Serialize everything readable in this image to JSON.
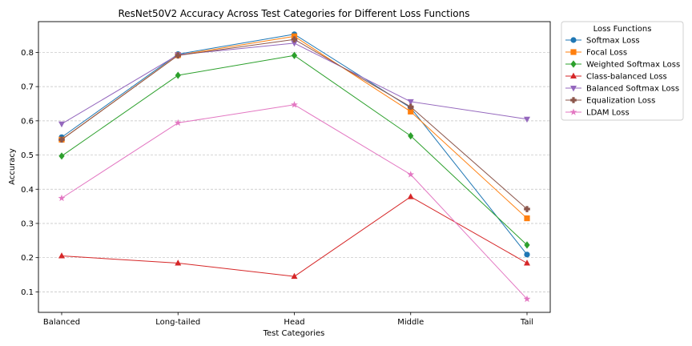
{
  "chart_data": {
    "type": "line",
    "title": "ResNet50V2 Accuracy Across Test Categories for Different Loss Functions",
    "xlabel": "Test Categories",
    "ylabel": "Accuracy",
    "categories": [
      "Balanced",
      "Long-tailed",
      "Head",
      "Middle",
      "Tail"
    ],
    "ylim": [
      0.04,
      0.89
    ],
    "yticks": [
      0.1,
      0.2,
      0.3,
      0.4,
      0.5,
      0.6,
      0.7,
      0.8
    ],
    "ytick_labels": [
      "0.1",
      "0.2",
      "0.3",
      "0.4",
      "0.5",
      "0.6",
      "0.7",
      "0.8"
    ],
    "grid": "horizontal-dashed",
    "legend": {
      "title": "Loss Functions",
      "placement": "outside-upper-right"
    },
    "series": [
      {
        "name": "Softmax Loss",
        "values": [
          0.552,
          0.795,
          0.853,
          0.638,
          0.209
        ],
        "color": "#1f77b4",
        "marker": "circle"
      },
      {
        "name": "Focal Loss",
        "values": [
          0.545,
          0.792,
          0.847,
          0.627,
          0.315
        ],
        "color": "#ff7f0e",
        "marker": "square"
      },
      {
        "name": "Weighted Softmax Loss",
        "values": [
          0.497,
          0.733,
          0.791,
          0.556,
          0.237
        ],
        "color": "#2ca02c",
        "marker": "diamond"
      },
      {
        "name": "Class-balanced Loss",
        "values": [
          0.205,
          0.184,
          0.145,
          0.378,
          0.184
        ],
        "color": "#d62728",
        "marker": "triangle-up"
      },
      {
        "name": "Balanced Softmax Loss",
        "values": [
          0.591,
          0.793,
          0.827,
          0.656,
          0.605
        ],
        "color": "#9467bd",
        "marker": "triangle-down"
      },
      {
        "name": "Equalization Loss",
        "values": [
          0.545,
          0.791,
          0.838,
          0.641,
          0.342
        ],
        "color": "#8c564b",
        "marker": "plus"
      },
      {
        "name": "LDAM Loss",
        "values": [
          0.374,
          0.594,
          0.647,
          0.443,
          0.079
        ],
        "color": "#e377c2",
        "marker": "star"
      }
    ]
  }
}
